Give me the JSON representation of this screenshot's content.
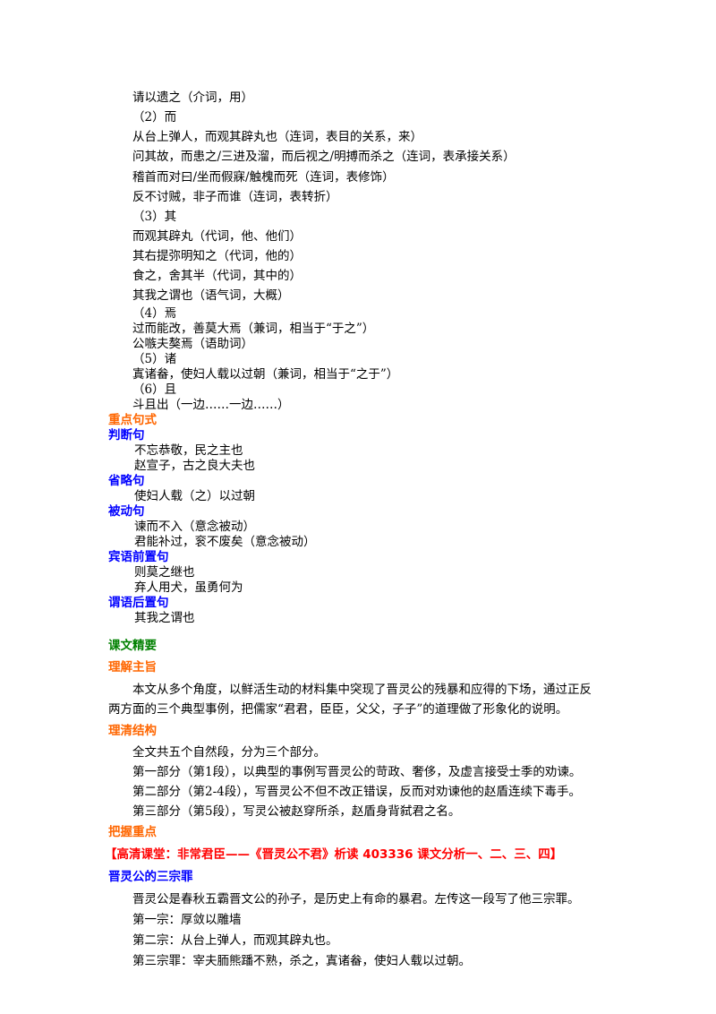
{
  "block1": [
    "请以遗之（介词，用）",
    "（2）而",
    "从台上弹人，而观其辟丸也（连词，表目的关系，来）",
    "问其故，而患之/三进及溜，而后视之/明搏而杀之（连词，表承接关系）",
    "稽首而对曰/坐而假寐/触槐而死（连词，表修饰）",
    "反不讨贼，非子而谁（连词，表转折）",
    "（3）其",
    "而观其辟丸（代词，他、他们）",
    "其右提弥明知之（代词，他的）",
    "食之，舍其半（代词，其中的）",
    "其我之谓也（语气词，大概）"
  ],
  "block2": [
    "（4）焉",
    "过而能改，善莫大焉（兼词，相当于“于之”）",
    "公嗾夫獒焉（语助词）",
    "（5）诸",
    "寘诸畚，使妇人载以过朝（兼词，相当于“之于”）",
    "（6）且",
    "斗且出（一边……一边……）"
  ],
  "sentence_patterns": {
    "heading": "重点句式",
    "panduan": {
      "title": "判断句",
      "lines": [
        "不忘恭敬，民之主也",
        "赵宣子，古之良大夫也"
      ]
    },
    "shenglue": {
      "title": "省略句",
      "lines": [
        "使妇人载（之）以过朝"
      ]
    },
    "beidong": {
      "title": "被动句",
      "lines": [
        "谏而不入（意念被动）",
        "君能补过，衮不废矣（意念被动）"
      ]
    },
    "binyu": {
      "title": "宾语前置句",
      "lines": [
        "则莫之继也",
        "弃人用犬，虽勇何为"
      ]
    },
    "weiyu": {
      "title": "谓语后置句",
      "lines": [
        "其我之谓也"
      ]
    }
  },
  "essence": {
    "heading": "课文精要",
    "theme_heading": "理解主旨",
    "theme_lines": [
      "本文从多个角度，以鲜活生动的材料集中突现了晋灵公的残暴和应得的下场，通过正反",
      "两方面的三个典型事例，把儒家“君君，臣臣，父父，子子”的道理做了形象化的说明。"
    ],
    "structure_heading": "理清结构",
    "structure_lines": [
      "全文共五个自然段，分为三个部分。",
      "第一部分（第1段），以典型的事例写晋灵公的苛政、奢侈，及虚言接受士季的劝谏。",
      "第二部分（第2-4段），写晋灵公不但不改正错误，反而对劝谏他的赵盾连续下毒手。",
      "第三部分（第5段），写灵公被赵穿所杀，赵盾身背弑君之名。"
    ],
    "key_heading": "把握重点",
    "banner": "【高清课堂：非常君臣——《晋灵公不君》析读  403336   课文分析一、二、三、四】",
    "crimes_heading": "晋灵公的三宗罪",
    "crimes_lines": [
      "晋灵公是春秋五霸晋文公的孙子，是历史上有命的暴君。左传这一段写了他三宗罪。",
      "第一宗：厚敛以雕墙",
      "第二宗：从台上弹人，而观其辟丸也。",
      "第三宗罪：宰夫胹熊蹯不熟，杀之，寘诸畚，使妇人载以过朝。"
    ]
  }
}
